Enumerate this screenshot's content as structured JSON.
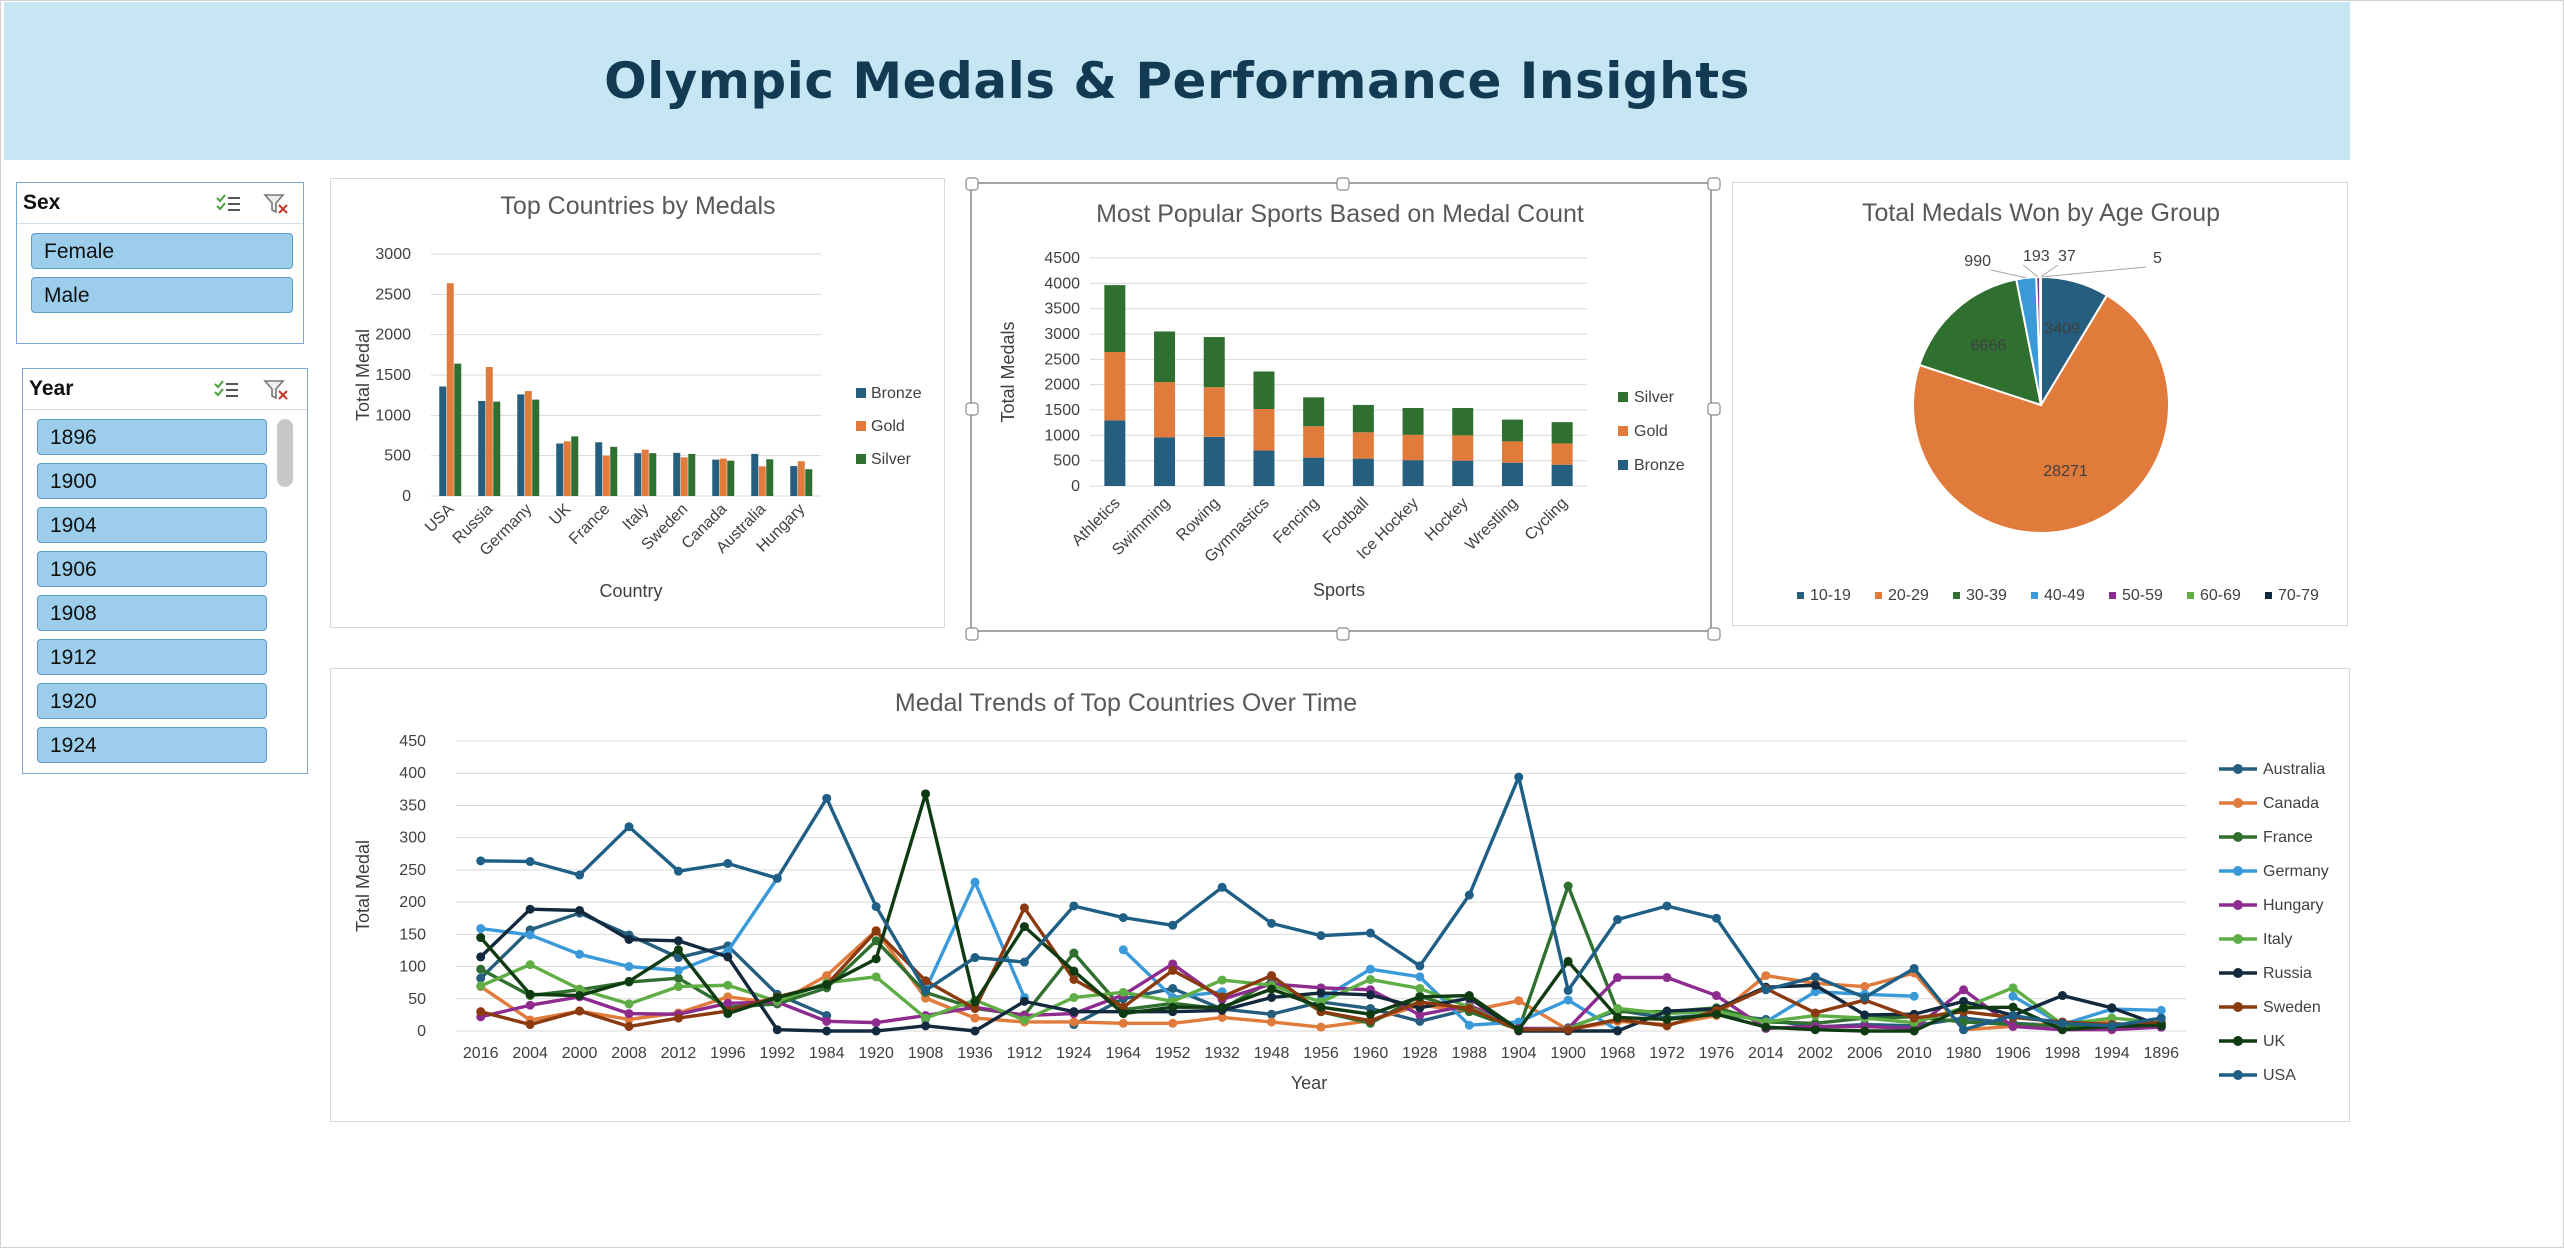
{
  "dashboard": {
    "title": "Olympic Medals & Performance Insights"
  },
  "slicers": {
    "sex": {
      "title": "Sex",
      "items": [
        "Female",
        "Male"
      ]
    },
    "year": {
      "title": "Year",
      "items": [
        "1896",
        "1900",
        "1904",
        "1906",
        "1908",
        "1912",
        "1920",
        "1924"
      ]
    },
    "icons": [
      "multi-select-icon",
      "clear-filter-icon"
    ]
  },
  "colors": {
    "bronze": "#255e7e",
    "gold": "#e07b3c",
    "silver": "#2f6f2f",
    "age": [
      "#255e7e",
      "#e07b3c",
      "#2f6f2f",
      "#3a9ad9",
      "#8e2b8e",
      "#5fad45",
      "#13293d"
    ],
    "trend": [
      "#255e7e",
      "#e07b3c",
      "#2f6f2f",
      "#3a9ad9",
      "#8e2b8e",
      "#5fad45",
      "#13293d",
      "#8b3a10",
      "#0f3b12",
      "#1f5f86"
    ]
  },
  "chart_data": [
    {
      "type": "bar",
      "title": "Top Countries by Medals",
      "xlabel": "Country",
      "ylabel": "Total Medal",
      "ylim": [
        0,
        3000
      ],
      "yticks": [
        0,
        500,
        1000,
        1500,
        2000,
        2500,
        3000
      ],
      "grid": true,
      "legend": "right",
      "categories": [
        "USA",
        "Russia",
        "Germany",
        "UK",
        "France",
        "Italy",
        "Sweden",
        "Canada",
        "Australia",
        "Hungary"
      ],
      "series": [
        {
          "name": "Bronze",
          "values": [
            1358,
            1178,
            1260,
            651,
            666,
            531,
            535,
            451,
            522,
            371
          ]
        },
        {
          "name": "Gold",
          "values": [
            2638,
            1599,
            1301,
            678,
            501,
            575,
            479,
            463,
            368,
            432
          ]
        },
        {
          "name": "Silver",
          "values": [
            1641,
            1170,
            1195,
            739,
            610,
            531,
            522,
            438,
            455,
            332
          ]
        }
      ]
    },
    {
      "type": "bar",
      "stacked": true,
      "title": "Most Popular Sports Based on Medal Count",
      "xlabel": "Sports",
      "ylabel": "Total Medals",
      "ylim": [
        0,
        4500
      ],
      "yticks": [
        0,
        500,
        1000,
        1500,
        2000,
        2500,
        3000,
        3500,
        4000,
        4500
      ],
      "grid": true,
      "legend": "right",
      "categories": [
        "Athletics",
        "Swimming",
        "Rowing",
        "Gymnastics",
        "Fencing",
        "Football",
        "Ice Hockey",
        "Hockey",
        "Wrestling",
        "Cycling"
      ],
      "series": [
        {
          "name": "Bronze",
          "values": [
            1295,
            960,
            970,
            700,
            560,
            540,
            510,
            500,
            460,
            420
          ]
        },
        {
          "name": "Gold",
          "values": [
            1350,
            1090,
            980,
            820,
            620,
            520,
            500,
            500,
            420,
            420
          ]
        },
        {
          "name": "Silver",
          "values": [
            1320,
            1000,
            990,
            740,
            570,
            540,
            530,
            540,
            430,
            420
          ]
        }
      ],
      "legend_order": [
        "Silver",
        "Gold",
        "Bronze"
      ]
    },
    {
      "type": "pie",
      "title": "Total Medals Won by Age Group",
      "legend": "bottom",
      "categories": [
        "10-19",
        "20-29",
        "30-39",
        "40-49",
        "50-59",
        "60-69",
        "70-79"
      ],
      "values": [
        3409,
        28271,
        6666,
        990,
        193,
        37,
        5
      ],
      "data_labels": [
        "3409",
        "28271",
        "6666",
        "990",
        "193",
        "37",
        "5"
      ]
    },
    {
      "type": "line",
      "title": "Medal Trends of Top Countries Over Time",
      "xlabel": "Year",
      "ylabel": "Total Medal",
      "ylim": [
        0,
        450
      ],
      "yticks": [
        0,
        50,
        100,
        150,
        200,
        250,
        300,
        350,
        400,
        450
      ],
      "grid": true,
      "legend": "right",
      "x": [
        "2016",
        "2004",
        "2000",
        "2008",
        "2012",
        "1996",
        "1992",
        "1984",
        "1920",
        "1908",
        "1936",
        "1912",
        "1924",
        "1964",
        "1952",
        "1932",
        "1948",
        "1956",
        "1960",
        "1928",
        "1988",
        "1904",
        "1900",
        "1968",
        "1972",
        "1976",
        "2014",
        "2002",
        "2006",
        "2010",
        "1980",
        "1906",
        "1998",
        "1994",
        "1896"
      ],
      "series": [
        {
          "name": "Australia",
          "values": [
            82,
            157,
            183,
            149,
            114,
            132,
            57,
            24,
            null,
            19,
            null,
            null,
            10,
            50,
            66,
            34,
            26,
            45,
            35,
            15,
            34,
            null,
            5,
            32,
            20,
            26,
            18,
            6,
            10,
            8,
            20,
            12,
            8,
            12,
            6
          ]
        },
        {
          "name": "Canada",
          "values": [
            69,
            17,
            31,
            18,
            28,
            53,
            43,
            86,
            156,
            51,
            20,
            14,
            14,
            12,
            12,
            21,
            14,
            6,
            16,
            40,
            31,
            47,
            2,
            15,
            10,
            24,
            86,
            74,
            69,
            90,
            2,
            7,
            12,
            14,
            null
          ]
        },
        {
          "name": "France",
          "values": [
            96,
            55,
            64,
            76,
            82,
            37,
            42,
            67,
            140,
            60,
            35,
            25,
            121,
            33,
            43,
            34,
            78,
            30,
            12,
            54,
            30,
            2,
            225,
            30,
            30,
            36,
            14,
            12,
            20,
            22,
            14,
            10,
            8,
            5,
            11
          ]
        },
        {
          "name": "Germany",
          "values": [
            159,
            149,
            119,
            100,
            94,
            124,
            237,
            null,
            null,
            64,
            231,
            52,
            null,
            126,
            52,
            61,
            null,
            49,
            96,
            84,
            9,
            14,
            48,
            1,
            null,
            null,
            14,
            61,
            57,
            54,
            null,
            54,
            10,
            34,
            32
          ]
        },
        {
          "name": "Hungary",
          "values": [
            22,
            40,
            53,
            27,
            26,
            43,
            45,
            15,
            13,
            24,
            37,
            24,
            27,
            56,
            104,
            49,
            73,
            67,
            64,
            25,
            40,
            4,
            4,
            83,
            83,
            55,
            4,
            7,
            7,
            4,
            64,
            7,
            2,
            2,
            6
          ]
        },
        {
          "name": "Italy",
          "values": [
            70,
            103,
            65,
            42,
            69,
            71,
            46,
            75,
            84,
            20,
            48,
            17,
            52,
            60,
            46,
            79,
            71,
            45,
            80,
            66,
            37,
            2,
            3,
            35,
            27,
            31,
            14,
            24,
            20,
            13,
            36,
            67,
            10,
            20,
            13
          ]
        },
        {
          "name": "Russia",
          "values": [
            115,
            189,
            187,
            142,
            140,
            115,
            2,
            0,
            0,
            8,
            0,
            46,
            30,
            30,
            30,
            32,
            52,
            59,
            56,
            36,
            51,
            0,
            0,
            0,
            31,
            34,
            68,
            71,
            25,
            26,
            46,
            24,
            55,
            36,
            8
          ]
        },
        {
          "name": "Sweden",
          "values": [
            30,
            10,
            31,
            7,
            20,
            31,
            53,
            72,
            155,
            78,
            35,
            191,
            80,
            37,
            94,
            53,
            86,
            30,
            16,
            45,
            35,
            2,
            2,
            18,
            8,
            32,
            66,
            28,
            48,
            20,
            30,
            21,
            14,
            10,
            13
          ]
        },
        {
          "name": "UK",
          "values": [
            145,
            57,
            55,
            77,
            126,
            27,
            52,
            72,
            112,
            368,
            45,
            162,
            93,
            27,
            37,
            37,
            65,
            37,
            26,
            53,
            55,
            2,
            108,
            21,
            18,
            26,
            6,
            2,
            0,
            0,
            36,
            37,
            2,
            7,
            9
          ]
        },
        {
          "name": "USA",
          "values": [
            264,
            263,
            242,
            317,
            248,
            260,
            237,
            361,
            193,
            63,
            114,
            107,
            194,
            176,
            164,
            223,
            167,
            148,
            152,
            101,
            211,
            394,
            63,
            173,
            194,
            175,
            64,
            84,
            52,
            97,
            2,
            24,
            12,
            8,
            20
          ]
        }
      ]
    }
  ]
}
